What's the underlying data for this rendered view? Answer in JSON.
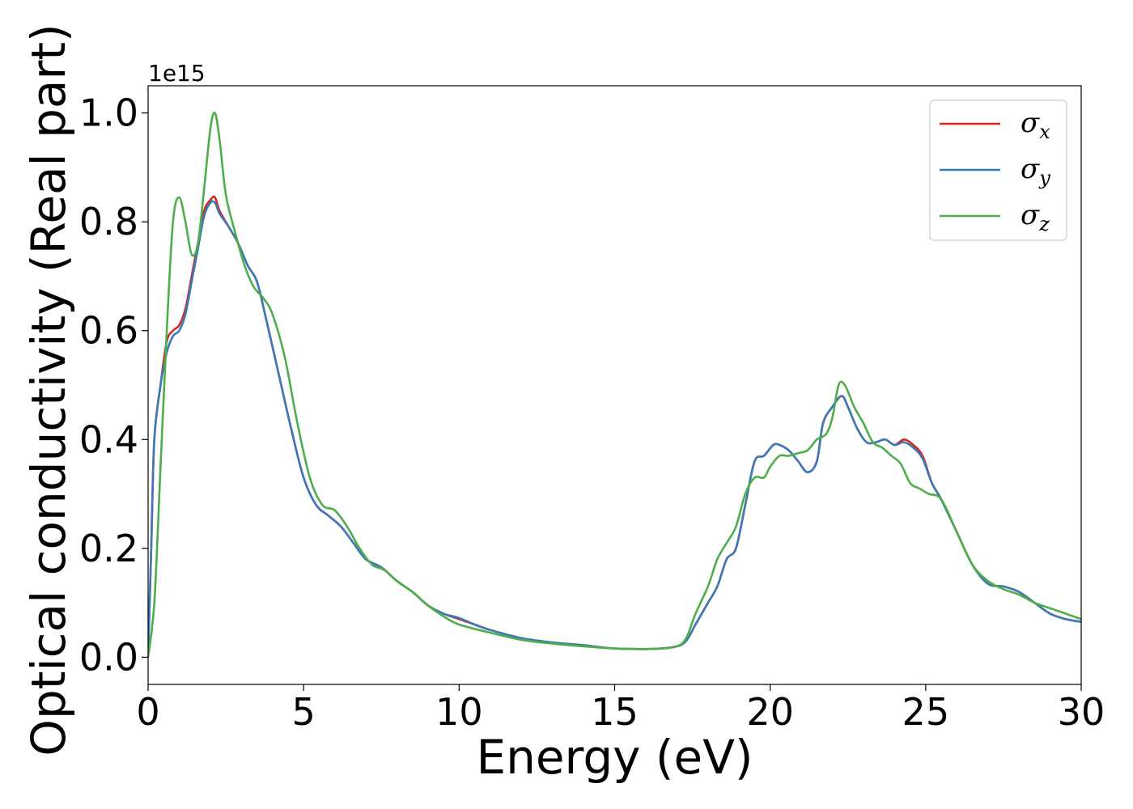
{
  "chart_data": {
    "type": "line",
    "xlabel": "Energy (eV)",
    "ylabel": "Optical conductivity (Real part)",
    "y_offset_label": "1e15",
    "xlim": [
      0,
      30
    ],
    "ylim": [
      -0.05,
      1.05
    ],
    "x_ticks": [
      0,
      5,
      10,
      15,
      20,
      25,
      30
    ],
    "x_tick_labels": [
      "0",
      "5",
      "10",
      "15",
      "20",
      "25",
      "30"
    ],
    "y_ticks": [
      0.0,
      0.2,
      0.4,
      0.6,
      0.8,
      1.0
    ],
    "y_tick_labels": [
      "0.0",
      "0.2",
      "0.4",
      "0.6",
      "0.8",
      "1.0"
    ],
    "grid": false,
    "legend_position": "top-right",
    "series": [
      {
        "name": "σx",
        "symbol": "σ",
        "subscript": "x",
        "color": "#d62728",
        "x": [
          0,
          0.1,
          0.2,
          0.4,
          0.6,
          0.8,
          1.0,
          1.2,
          1.4,
          1.6,
          1.8,
          2.0,
          2.15,
          2.3,
          2.6,
          2.9,
          3.2,
          3.5,
          3.8,
          4.2,
          4.6,
          5.0,
          5.4,
          5.8,
          6.2,
          6.6,
          7.0,
          7.5,
          8.0,
          8.5,
          9.0,
          9.5,
          10.0,
          10.5,
          11.0,
          12.0,
          13.0,
          14.0,
          15.0,
          16.0,
          16.5,
          17.0,
          17.3,
          17.6,
          18.0,
          18.3,
          18.6,
          18.9,
          19.2,
          19.5,
          19.8,
          20.1,
          20.3,
          20.6,
          20.9,
          21.2,
          21.5,
          21.7,
          22.0,
          22.3,
          22.5,
          22.8,
          23.1,
          23.4,
          23.7,
          24.0,
          24.3,
          24.6,
          24.9,
          25.2,
          25.5,
          26.0,
          26.5,
          27.0,
          27.5,
          28.0,
          28.5,
          29.0,
          29.5,
          30.0
        ],
        "y": [
          0.0,
          0.2,
          0.4,
          0.5,
          0.58,
          0.6,
          0.61,
          0.64,
          0.7,
          0.76,
          0.82,
          0.84,
          0.845,
          0.82,
          0.79,
          0.76,
          0.72,
          0.69,
          0.62,
          0.52,
          0.42,
          0.33,
          0.28,
          0.26,
          0.24,
          0.21,
          0.18,
          0.165,
          0.14,
          0.12,
          0.095,
          0.08,
          0.07,
          0.06,
          0.05,
          0.035,
          0.027,
          0.022,
          0.016,
          0.015,
          0.016,
          0.02,
          0.03,
          0.06,
          0.1,
          0.13,
          0.18,
          0.2,
          0.28,
          0.36,
          0.37,
          0.39,
          0.39,
          0.38,
          0.36,
          0.34,
          0.36,
          0.43,
          0.46,
          0.48,
          0.46,
          0.42,
          0.395,
          0.395,
          0.4,
          0.39,
          0.4,
          0.39,
          0.37,
          0.32,
          0.29,
          0.23,
          0.17,
          0.135,
          0.13,
          0.12,
          0.1,
          0.08,
          0.07,
          0.065
        ]
      },
      {
        "name": "σy",
        "symbol": "σ",
        "subscript": "y",
        "color": "#3a7ab8",
        "x": [
          0,
          0.1,
          0.2,
          0.4,
          0.6,
          0.8,
          1.0,
          1.2,
          1.4,
          1.6,
          1.8,
          2.0,
          2.15,
          2.3,
          2.6,
          2.9,
          3.2,
          3.5,
          3.8,
          4.2,
          4.6,
          5.0,
          5.4,
          5.8,
          6.2,
          6.6,
          7.0,
          7.5,
          8.0,
          8.5,
          9.0,
          9.5,
          10.0,
          10.5,
          11.0,
          12.0,
          13.0,
          14.0,
          15.0,
          16.0,
          16.5,
          17.0,
          17.3,
          17.6,
          18.0,
          18.3,
          18.6,
          18.9,
          19.2,
          19.5,
          19.8,
          20.1,
          20.3,
          20.6,
          20.9,
          21.2,
          21.5,
          21.7,
          22.0,
          22.3,
          22.5,
          22.8,
          23.1,
          23.4,
          23.7,
          24.0,
          24.3,
          24.6,
          24.9,
          25.2,
          25.5,
          26.0,
          26.5,
          27.0,
          27.5,
          28.0,
          28.5,
          29.0,
          29.5,
          30.0
        ],
        "y": [
          0.0,
          0.2,
          0.4,
          0.5,
          0.56,
          0.59,
          0.6,
          0.63,
          0.69,
          0.75,
          0.81,
          0.835,
          0.835,
          0.815,
          0.79,
          0.76,
          0.72,
          0.69,
          0.62,
          0.52,
          0.42,
          0.33,
          0.28,
          0.26,
          0.24,
          0.21,
          0.18,
          0.165,
          0.14,
          0.12,
          0.095,
          0.08,
          0.072,
          0.06,
          0.05,
          0.035,
          0.027,
          0.022,
          0.016,
          0.015,
          0.016,
          0.02,
          0.03,
          0.06,
          0.1,
          0.13,
          0.18,
          0.2,
          0.28,
          0.36,
          0.37,
          0.39,
          0.39,
          0.38,
          0.36,
          0.34,
          0.36,
          0.43,
          0.46,
          0.48,
          0.46,
          0.42,
          0.395,
          0.395,
          0.4,
          0.39,
          0.395,
          0.385,
          0.365,
          0.32,
          0.29,
          0.23,
          0.17,
          0.135,
          0.13,
          0.12,
          0.1,
          0.08,
          0.07,
          0.065
        ]
      },
      {
        "name": "σz",
        "symbol": "σ",
        "subscript": "z",
        "color": "#4daf4a",
        "x": [
          0,
          0.2,
          0.4,
          0.6,
          0.8,
          1.0,
          1.2,
          1.4,
          1.6,
          1.8,
          2.0,
          2.15,
          2.3,
          2.5,
          2.8,
          3.1,
          3.4,
          3.7,
          4.0,
          4.4,
          4.8,
          5.2,
          5.6,
          6.0,
          6.4,
          6.8,
          7.2,
          7.6,
          8.0,
          8.5,
          9.0,
          9.5,
          10.0,
          11.0,
          12.0,
          13.0,
          14.0,
          15.0,
          16.0,
          16.5,
          17.0,
          17.3,
          17.6,
          18.0,
          18.3,
          18.6,
          18.9,
          19.2,
          19.5,
          19.8,
          20.0,
          20.3,
          20.6,
          20.9,
          21.2,
          21.5,
          21.8,
          22.0,
          22.2,
          22.4,
          22.7,
          23.0,
          23.3,
          23.6,
          23.9,
          24.2,
          24.5,
          24.8,
          25.1,
          25.5,
          26.0,
          26.5,
          27.0,
          27.5,
          28.0,
          28.5,
          29.0,
          29.5,
          30.0
        ],
        "y": [
          0.0,
          0.1,
          0.35,
          0.6,
          0.8,
          0.845,
          0.8,
          0.74,
          0.76,
          0.86,
          0.97,
          1.0,
          0.95,
          0.85,
          0.78,
          0.72,
          0.68,
          0.66,
          0.63,
          0.55,
          0.43,
          0.33,
          0.28,
          0.27,
          0.24,
          0.2,
          0.17,
          0.16,
          0.14,
          0.12,
          0.095,
          0.075,
          0.06,
          0.045,
          0.032,
          0.025,
          0.02,
          0.016,
          0.015,
          0.016,
          0.02,
          0.035,
          0.08,
          0.13,
          0.18,
          0.21,
          0.24,
          0.3,
          0.33,
          0.33,
          0.35,
          0.37,
          0.37,
          0.375,
          0.38,
          0.4,
          0.41,
          0.44,
          0.5,
          0.5,
          0.46,
          0.43,
          0.395,
          0.385,
          0.37,
          0.355,
          0.32,
          0.31,
          0.3,
          0.29,
          0.23,
          0.17,
          0.14,
          0.125,
          0.115,
          0.1,
          0.09,
          0.08,
          0.07
        ]
      }
    ]
  }
}
